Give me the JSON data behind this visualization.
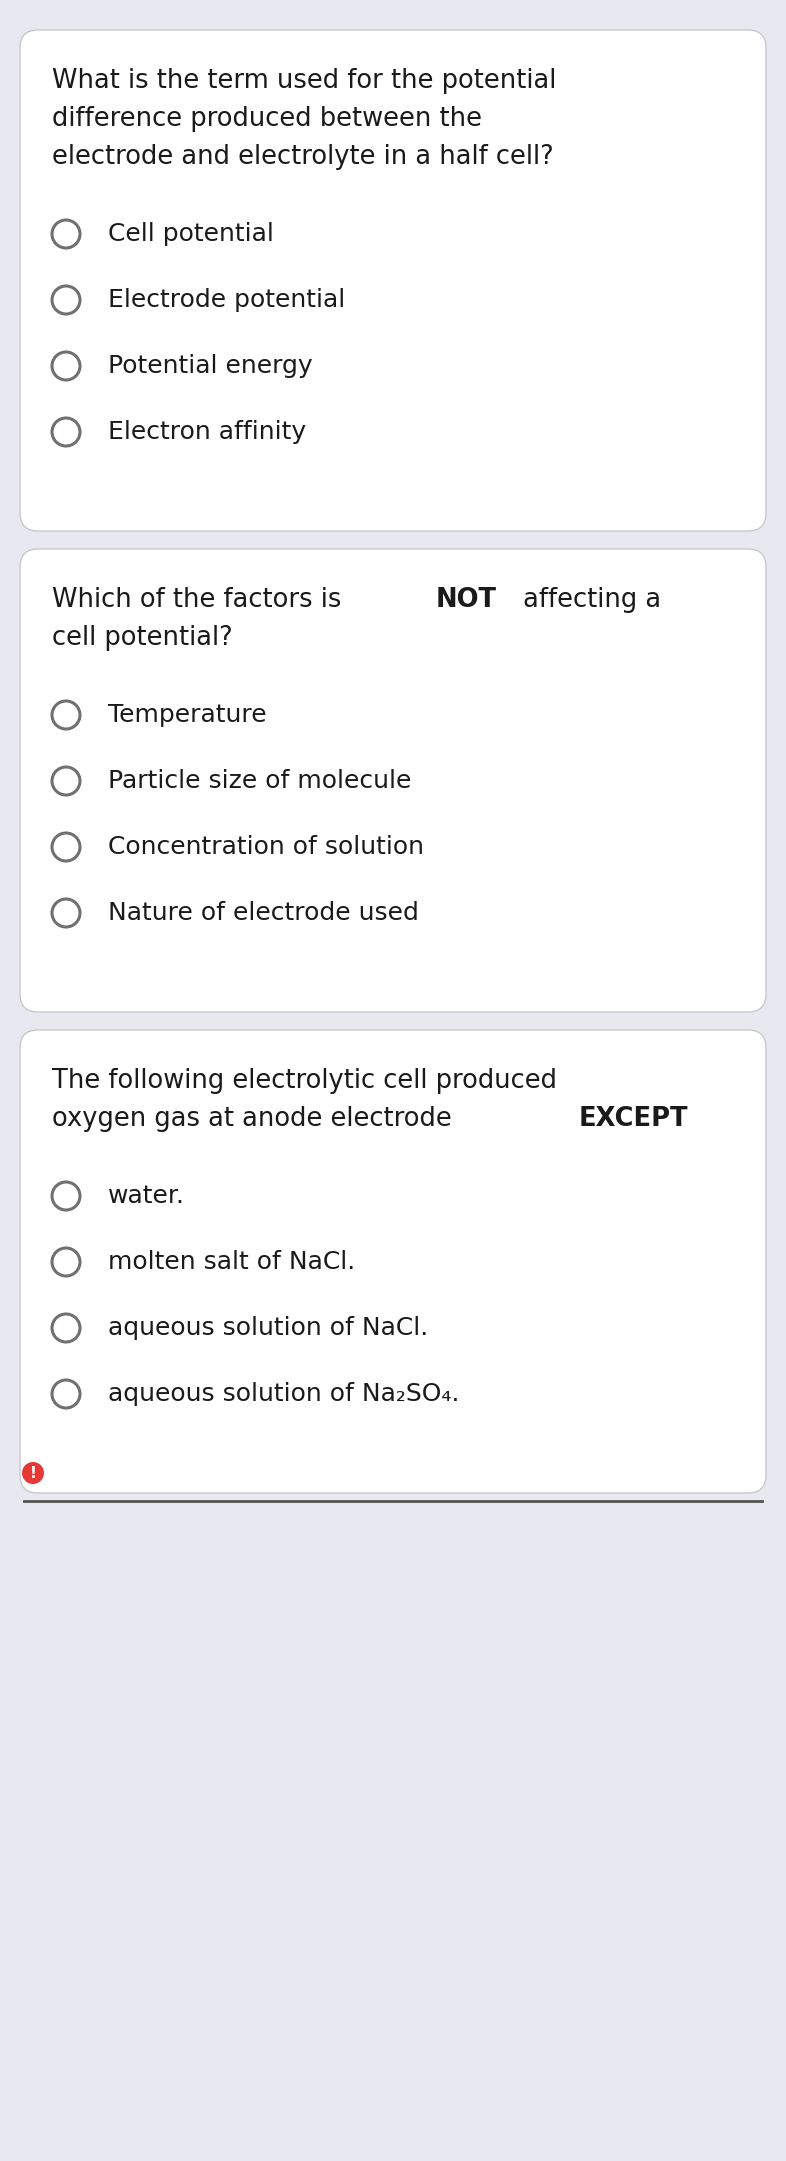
{
  "background_color": "#e8e8f0",
  "card_bg": "#ffffff",
  "text_color": "#1a1a1a",
  "circle_color": "#707070",
  "questions": [
    {
      "question_lines": [
        [
          {
            "text": "What is the term used for the potential",
            "bold": false
          }
        ],
        [
          {
            "text": "difference produced between the",
            "bold": false
          }
        ],
        [
          {
            "text": "electrode and electrolyte in a half cell?",
            "bold": false
          }
        ]
      ],
      "options": [
        [
          {
            "text": "Cell potential",
            "bold": false
          }
        ],
        [
          {
            "text": "Electrode potential",
            "bold": false
          }
        ],
        [
          {
            "text": "Potential energy",
            "bold": false
          }
        ],
        [
          {
            "text": "Electron affinity",
            "bold": false
          }
        ]
      ],
      "has_exclamation": false
    },
    {
      "question_lines": [
        [
          {
            "text": "Which of the factors is ",
            "bold": false
          },
          {
            "text": "NOT",
            "bold": true
          },
          {
            "text": " affecting a",
            "bold": false
          }
        ],
        [
          {
            "text": "cell potential?",
            "bold": false
          }
        ]
      ],
      "options": [
        [
          {
            "text": "Temperature",
            "bold": false
          }
        ],
        [
          {
            "text": "Particle size of molecule",
            "bold": false
          }
        ],
        [
          {
            "text": "Concentration of solution",
            "bold": false
          }
        ],
        [
          {
            "text": "Nature of electrode used",
            "bold": false
          }
        ]
      ],
      "has_exclamation": false
    },
    {
      "question_lines": [
        [
          {
            "text": "The following electrolytic cell produced",
            "bold": false
          }
        ],
        [
          {
            "text": "oxygen gas at anode electrode ",
            "bold": false
          },
          {
            "text": "EXCEPT",
            "bold": true
          }
        ]
      ],
      "options": [
        [
          {
            "text": "water.",
            "bold": false
          }
        ],
        [
          {
            "text": "molten salt of NaCl.",
            "bold": false
          }
        ],
        [
          {
            "text": "aqueous solution of NaCl.",
            "bold": false
          }
        ],
        [
          {
            "text": "aqueous solution of Na₂SO₄.",
            "bold": false
          }
        ]
      ],
      "has_exclamation": true
    }
  ]
}
